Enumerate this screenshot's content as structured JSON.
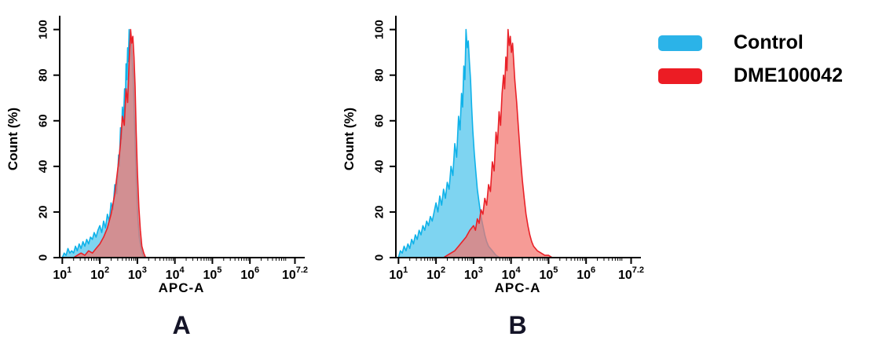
{
  "legend": {
    "items": [
      {
        "label": "Control",
        "color": "#2bb3e8"
      },
      {
        "label": "DME100042",
        "color": "#ec1c24"
      }
    ]
  },
  "chart_data": [
    {
      "type": "area",
      "panel_letter": "A",
      "xlabel": "APC-A",
      "ylabel": "Count  (%)",
      "x_scale": "log10",
      "x_log_min": 0.93,
      "x_log_max": 7.42,
      "y_max_draw": 104,
      "ylim": [
        0,
        100
      ],
      "y_ticks": [
        0,
        20,
        40,
        60,
        80,
        100
      ],
      "x_ticks": [
        {
          "log": 1,
          "base": "10",
          "exp": "1"
        },
        {
          "log": 2,
          "base": "10",
          "exp": "2"
        },
        {
          "log": 3,
          "base": "10",
          "exp": "3"
        },
        {
          "log": 4,
          "base": "10",
          "exp": "4"
        },
        {
          "log": 5,
          "base": "10",
          "exp": "5"
        },
        {
          "log": 6,
          "base": "10",
          "exp": "6"
        },
        {
          "log": 7.2,
          "base": "10",
          "exp": "7.2"
        }
      ],
      "series": [
        {
          "name": "Control",
          "stroke": "#0fb2e9",
          "fill": "#5ec9ee",
          "fill_opacity": 0.8,
          "points": [
            [
              1.0,
              0
            ],
            [
              1.05,
              2
            ],
            [
              1.1,
              1
            ],
            [
              1.15,
              4
            ],
            [
              1.2,
              2
            ],
            [
              1.25,
              3
            ],
            [
              1.3,
              2
            ],
            [
              1.35,
              5
            ],
            [
              1.4,
              3
            ],
            [
              1.45,
              6
            ],
            [
              1.5,
              4
            ],
            [
              1.55,
              7
            ],
            [
              1.6,
              5
            ],
            [
              1.65,
              8
            ],
            [
              1.7,
              6
            ],
            [
              1.75,
              9
            ],
            [
              1.8,
              8
            ],
            [
              1.85,
              11
            ],
            [
              1.9,
              9
            ],
            [
              1.95,
              12
            ],
            [
              2.0,
              14
            ],
            [
              2.05,
              11
            ],
            [
              2.1,
              16
            ],
            [
              2.15,
              13
            ],
            [
              2.2,
              19
            ],
            [
              2.25,
              16
            ],
            [
              2.3,
              24
            ],
            [
              2.35,
              21
            ],
            [
              2.4,
              32
            ],
            [
              2.45,
              28
            ],
            [
              2.5,
              45
            ],
            [
              2.52,
              40
            ],
            [
              2.55,
              57
            ],
            [
              2.58,
              52
            ],
            [
              2.6,
              66
            ],
            [
              2.63,
              60
            ],
            [
              2.66,
              74
            ],
            [
              2.68,
              68
            ],
            [
              2.7,
              85
            ],
            [
              2.72,
              78
            ],
            [
              2.74,
              92
            ],
            [
              2.76,
              86
            ],
            [
              2.78,
              100
            ],
            [
              2.8,
              93
            ],
            [
              2.83,
              96
            ],
            [
              2.86,
              88
            ],
            [
              2.89,
              80
            ],
            [
              2.92,
              62
            ],
            [
              2.95,
              45
            ],
            [
              2.98,
              30
            ],
            [
              3.01,
              18
            ],
            [
              3.05,
              9
            ],
            [
              3.1,
              4
            ],
            [
              3.15,
              1
            ],
            [
              3.2,
              0
            ]
          ]
        },
        {
          "name": "DME100042",
          "stroke": "#e92128",
          "fill": "#f3746e",
          "fill_opacity": 0.72,
          "points": [
            [
              1.3,
              0
            ],
            [
              1.4,
              1
            ],
            [
              1.5,
              2
            ],
            [
              1.6,
              1
            ],
            [
              1.7,
              3
            ],
            [
              1.8,
              2
            ],
            [
              1.9,
              4
            ],
            [
              2.0,
              6
            ],
            [
              2.1,
              9
            ],
            [
              2.2,
              13
            ],
            [
              2.3,
              19
            ],
            [
              2.4,
              28
            ],
            [
              2.5,
              42
            ],
            [
              2.55,
              50
            ],
            [
              2.6,
              62
            ],
            [
              2.65,
              58
            ],
            [
              2.7,
              74
            ],
            [
              2.74,
              68
            ],
            [
              2.78,
              86
            ],
            [
              2.82,
              100
            ],
            [
              2.85,
              94
            ],
            [
              2.88,
              97
            ],
            [
              2.91,
              88
            ],
            [
              2.94,
              75
            ],
            [
              2.97,
              55
            ],
            [
              3.0,
              38
            ],
            [
              3.04,
              22
            ],
            [
              3.08,
              12
            ],
            [
              3.12,
              5
            ],
            [
              3.17,
              2
            ],
            [
              3.22,
              0
            ]
          ]
        }
      ]
    },
    {
      "type": "area",
      "panel_letter": "B",
      "xlabel": "APC-A",
      "ylabel": "Count  (%)",
      "x_scale": "log10",
      "x_log_min": 0.93,
      "x_log_max": 7.42,
      "y_max_draw": 104,
      "ylim": [
        0,
        100
      ],
      "y_ticks": [
        0,
        20,
        40,
        60,
        80,
        100
      ],
      "x_ticks": [
        {
          "log": 1,
          "base": "10",
          "exp": "1"
        },
        {
          "log": 2,
          "base": "10",
          "exp": "2"
        },
        {
          "log": 3,
          "base": "10",
          "exp": "3"
        },
        {
          "log": 4,
          "base": "10",
          "exp": "4"
        },
        {
          "log": 5,
          "base": "10",
          "exp": "5"
        },
        {
          "log": 6,
          "base": "10",
          "exp": "6"
        },
        {
          "log": 7.2,
          "base": "10",
          "exp": "7.2"
        }
      ],
      "series": [
        {
          "name": "Control",
          "stroke": "#0fb2e9",
          "fill": "#5ec9ee",
          "fill_opacity": 0.8,
          "points": [
            [
              1.0,
              0
            ],
            [
              1.05,
              3
            ],
            [
              1.1,
              2
            ],
            [
              1.15,
              5
            ],
            [
              1.2,
              3
            ],
            [
              1.25,
              6
            ],
            [
              1.3,
              4
            ],
            [
              1.35,
              8
            ],
            [
              1.4,
              6
            ],
            [
              1.45,
              10
            ],
            [
              1.5,
              8
            ],
            [
              1.55,
              12
            ],
            [
              1.6,
              10
            ],
            [
              1.65,
              14
            ],
            [
              1.7,
              12
            ],
            [
              1.75,
              16
            ],
            [
              1.8,
              14
            ],
            [
              1.85,
              18
            ],
            [
              1.9,
              16
            ],
            [
              1.95,
              20
            ],
            [
              2.0,
              24
            ],
            [
              2.05,
              20
            ],
            [
              2.1,
              27
            ],
            [
              2.15,
              23
            ],
            [
              2.2,
              30
            ],
            [
              2.25,
              26
            ],
            [
              2.3,
              33
            ],
            [
              2.35,
              30
            ],
            [
              2.4,
              40
            ],
            [
              2.45,
              36
            ],
            [
              2.5,
              50
            ],
            [
              2.55,
              44
            ],
            [
              2.6,
              62
            ],
            [
              2.64,
              56
            ],
            [
              2.68,
              72
            ],
            [
              2.71,
              66
            ],
            [
              2.74,
              84
            ],
            [
              2.77,
              78
            ],
            [
              2.8,
              100
            ],
            [
              2.83,
              92
            ],
            [
              2.86,
              95
            ],
            [
              2.89,
              86
            ],
            [
              2.92,
              78
            ],
            [
              2.95,
              66
            ],
            [
              2.98,
              56
            ],
            [
              3.02,
              46
            ],
            [
              3.06,
              38
            ],
            [
              3.1,
              30
            ],
            [
              3.15,
              24
            ],
            [
              3.2,
              18
            ],
            [
              3.25,
              14
            ],
            [
              3.3,
              10
            ],
            [
              3.35,
              7
            ],
            [
              3.4,
              5
            ],
            [
              3.5,
              3
            ],
            [
              3.6,
              1
            ],
            [
              3.7,
              0
            ]
          ]
        },
        {
          "name": "DME100042",
          "stroke": "#e92128",
          "fill": "#f3746e",
          "fill_opacity": 0.72,
          "points": [
            [
              2.2,
              0
            ],
            [
              2.3,
              1
            ],
            [
              2.4,
              2
            ],
            [
              2.5,
              3
            ],
            [
              2.6,
              5
            ],
            [
              2.7,
              7
            ],
            [
              2.8,
              9
            ],
            [
              2.9,
              12
            ],
            [
              3.0,
              14
            ],
            [
              3.05,
              12
            ],
            [
              3.1,
              17
            ],
            [
              3.15,
              15
            ],
            [
              3.2,
              21
            ],
            [
              3.25,
              19
            ],
            [
              3.3,
              26
            ],
            [
              3.35,
              23
            ],
            [
              3.4,
              32
            ],
            [
              3.45,
              29
            ],
            [
              3.5,
              42
            ],
            [
              3.55,
              38
            ],
            [
              3.6,
              55
            ],
            [
              3.64,
              50
            ],
            [
              3.68,
              64
            ],
            [
              3.72,
              58
            ],
            [
              3.76,
              72
            ],
            [
              3.8,
              80
            ],
            [
              3.83,
              74
            ],
            [
              3.86,
              88
            ],
            [
              3.89,
              82
            ],
            [
              3.92,
              100
            ],
            [
              3.95,
              93
            ],
            [
              3.98,
              97
            ],
            [
              4.01,
              90
            ],
            [
              4.04,
              94
            ],
            [
              4.07,
              86
            ],
            [
              4.1,
              78
            ],
            [
              4.15,
              68
            ],
            [
              4.2,
              56
            ],
            [
              4.25,
              44
            ],
            [
              4.3,
              34
            ],
            [
              4.35,
              26
            ],
            [
              4.4,
              19
            ],
            [
              4.45,
              14
            ],
            [
              4.5,
              10
            ],
            [
              4.55,
              7
            ],
            [
              4.6,
              5
            ],
            [
              4.7,
              3
            ],
            [
              4.8,
              2
            ],
            [
              4.9,
              1
            ],
            [
              5.0,
              1
            ],
            [
              5.1,
              0
            ]
          ]
        }
      ]
    }
  ]
}
